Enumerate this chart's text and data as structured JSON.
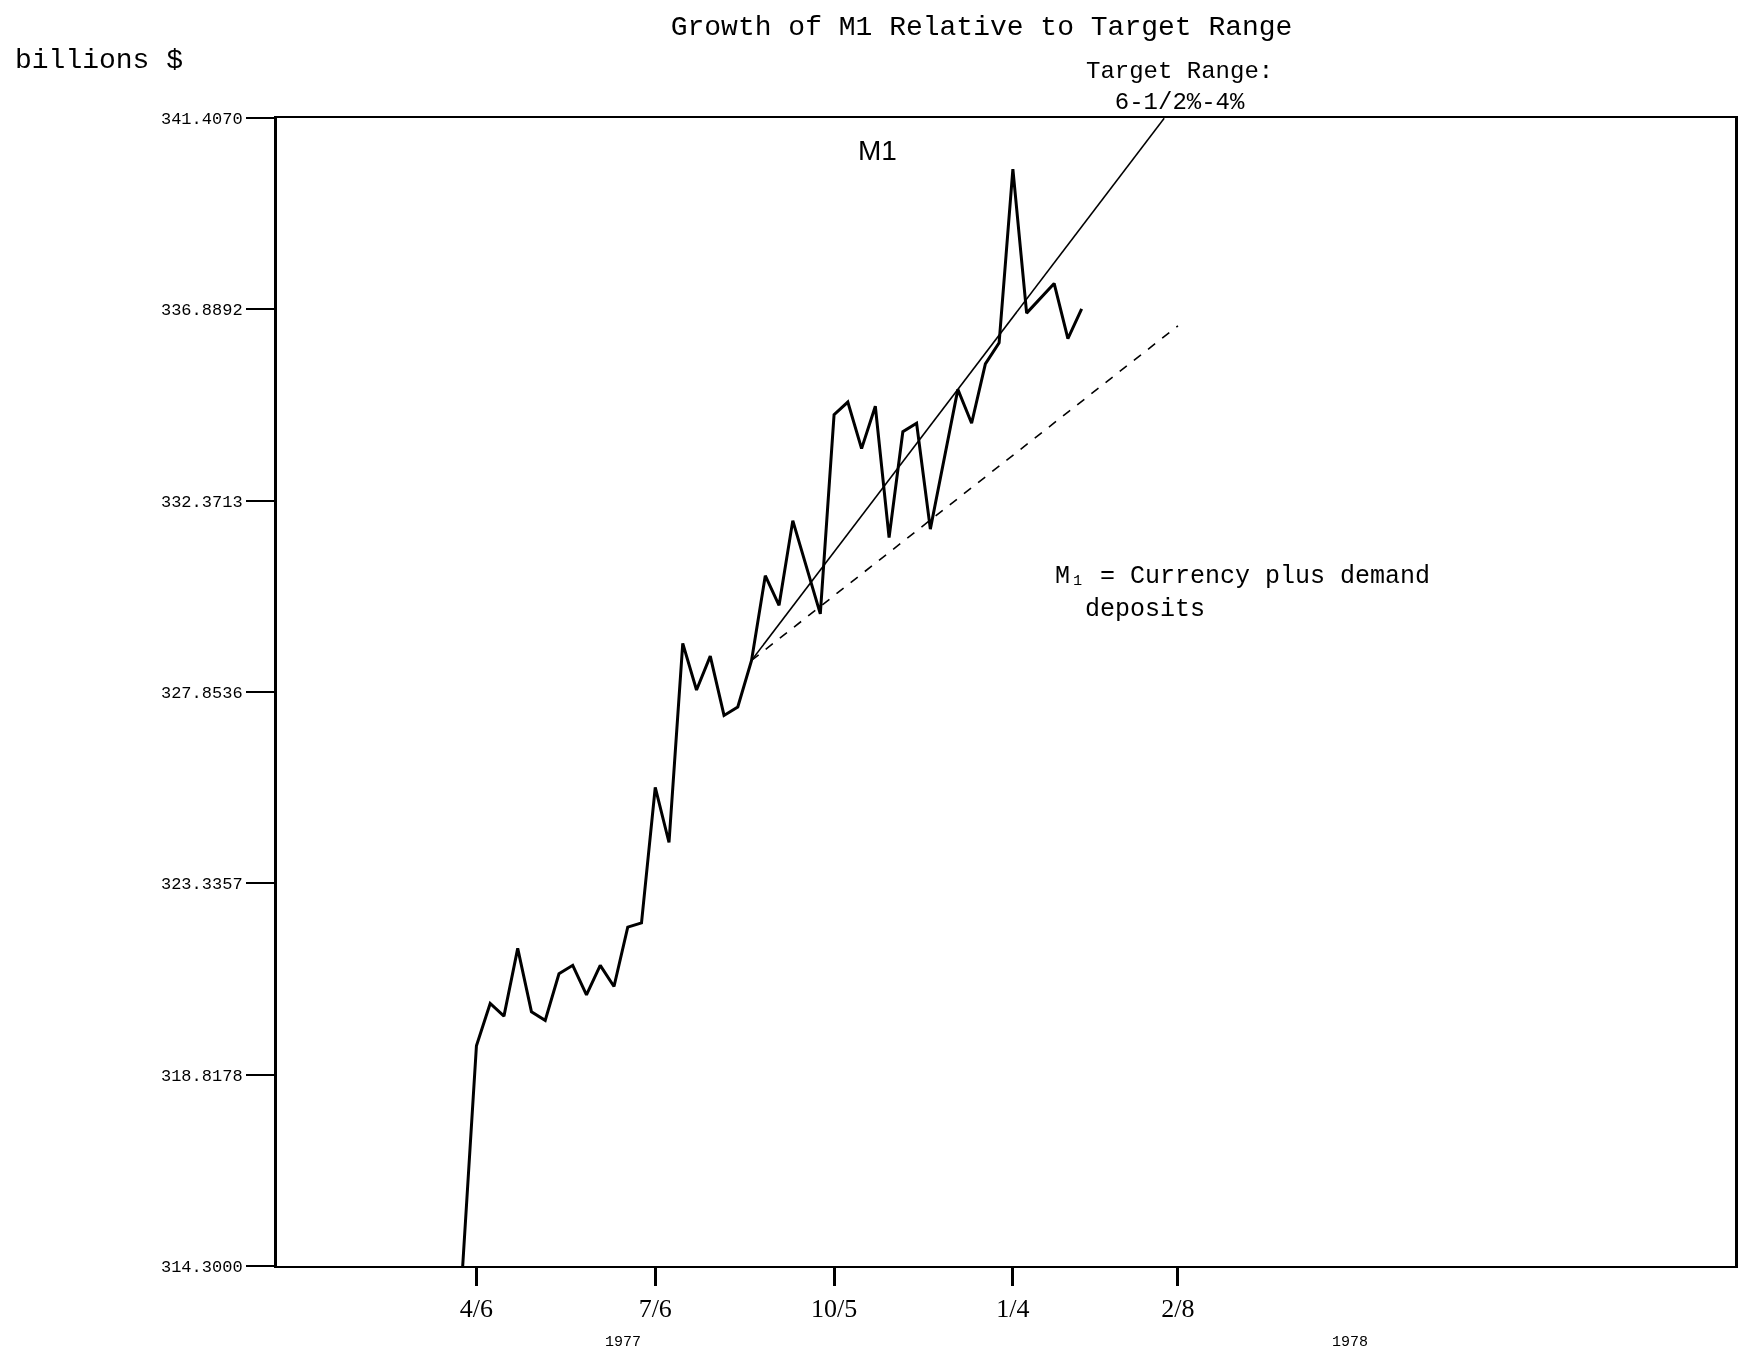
{
  "chart_data": {
    "type": "line",
    "title": "Growth of M1 Relative to Target Range",
    "ylabel": "billions $",
    "categories": [
      null,
      null,
      null,
      null,
      null,
      null,
      null,
      null,
      null,
      null,
      null,
      null,
      null,
      null,
      "4/6",
      null,
      null,
      null,
      null,
      null,
      null,
      null,
      null,
      null,
      null,
      null,
      null,
      "7/6",
      null,
      null,
      null,
      null,
      null,
      null,
      null,
      null,
      null,
      null,
      null,
      null,
      "10/5",
      null,
      null,
      null,
      null,
      null,
      null,
      null,
      null,
      null,
      null,
      null,
      null,
      "1/4",
      null,
      null,
      null,
      null,
      null,
      null,
      null,
      null,
      null,
      null,
      null,
      "2/8",
      null,
      null,
      null,
      null,
      null,
      null,
      null,
      null,
      null,
      null,
      null,
      null,
      null,
      null,
      null,
      null,
      null,
      null,
      null,
      null,
      null,
      null,
      null,
      null,
      null,
      null,
      null,
      null,
      null,
      null,
      null,
      null,
      null,
      null,
      null,
      null,
      null,
      null,
      null,
      null
    ],
    "series": [
      {
        "color": "#000000",
        "values": [
          null,
          null,
          null,
          null,
          null,
          null,
          null,
          null,
          null,
          null,
          null,
          null,
          null,
          314.3,
          319.5,
          320.5,
          320.2,
          321.8,
          320.3,
          320.1,
          321.2,
          321.4,
          320.7,
          321.4,
          320.9,
          322.3,
          322.4,
          325.6,
          324.3,
          329.0,
          327.9,
          328.7,
          327.3,
          327.5,
          328.6,
          330.6,
          329.9,
          331.9,
          null,
          329.7,
          334.4,
          334.7,
          333.6,
          334.6,
          331.5,
          334.0,
          334.2,
          331.7,
          null,
          335.0,
          334.2,
          335.6,
          336.1,
          340.2,
          336.8,
          null,
          337.5,
          336.2,
          336.9,
          null,
          null,
          null,
          null,
          null,
          null,
          null,
          null,
          null,
          null,
          null,
          null,
          null,
          null,
          null,
          null,
          null,
          null,
          null,
          null,
          null,
          null,
          null,
          null,
          null,
          null,
          null,
          null,
          null,
          null,
          null,
          null,
          null,
          null,
          null,
          null,
          null,
          null,
          null,
          null,
          null,
          null,
          null,
          null,
          null,
          null,
          null
        ]
      },
      {
        "color": "#000000",
        "line_style": "solid",
        "values": [
          null,
          null,
          null,
          null,
          null,
          null,
          null,
          null,
          null,
          null,
          null,
          null,
          null,
          null,
          null,
          null,
          null,
          null,
          null,
          null,
          null,
          null,
          null,
          null,
          null,
          null,
          null,
          null,
          null,
          null,
          null,
          null,
          null,
          null,
          328.6,
          null,
          null,
          null,
          null,
          null,
          null,
          null,
          null,
          null,
          null,
          null,
          null,
          null,
          null,
          null,
          null,
          null,
          null,
          null,
          null,
          null,
          null,
          null,
          null,
          null,
          null,
          null,
          null,
          null,
          341.4,
          null,
          null,
          null,
          null,
          null,
          null,
          null,
          null,
          null,
          null,
          null,
          null,
          null,
          null,
          null,
          null,
          null,
          null,
          null,
          null,
          null,
          null,
          null,
          null,
          null,
          null,
          null,
          null,
          null,
          null,
          null,
          null,
          null,
          null,
          null,
          null,
          null,
          null,
          null,
          null,
          null
        ]
      },
      {
        "color": "#000000",
        "line_style": "dashed",
        "values": [
          null,
          null,
          null,
          null,
          null,
          null,
          null,
          null,
          null,
          null,
          null,
          null,
          null,
          null,
          null,
          null,
          null,
          null,
          null,
          null,
          null,
          null,
          null,
          null,
          null,
          null,
          null,
          null,
          null,
          null,
          null,
          null,
          null,
          null,
          328.6,
          null,
          null,
          null,
          null,
          null,
          null,
          null,
          null,
          null,
          null,
          null,
          null,
          null,
          null,
          null,
          null,
          null,
          null,
          null,
          null,
          null,
          null,
          null,
          null,
          null,
          null,
          null,
          null,
          null,
          null,
          336.5,
          null,
          null,
          null,
          null,
          null,
          null,
          null,
          null,
          null,
          null,
          null,
          null,
          null,
          null,
          null,
          null,
          null,
          null,
          null,
          null,
          null,
          null,
          null,
          null,
          null,
          null,
          null,
          null,
          null,
          null,
          null,
          null,
          null,
          null,
          null,
          null,
          null,
          null,
          null,
          null
        ]
      }
    ],
    "ylim": [
      314.3,
      341.407
    ],
    "yticks": [
      {
        "value": 314.3,
        "label": "314.3000"
      },
      318.8178,
      323.3357,
      327.8536,
      332.3713,
      336.8892,
      {
        "value": 341.407,
        "label": "341.4070"
      }
    ],
    "annotations": [
      "M1",
      "Target Range:\n6-1/2%-4%",
      "M₁ = Currency plus demand\n  deposits",
      "1977",
      "1978"
    ],
    "line_style": "solid"
  }
}
